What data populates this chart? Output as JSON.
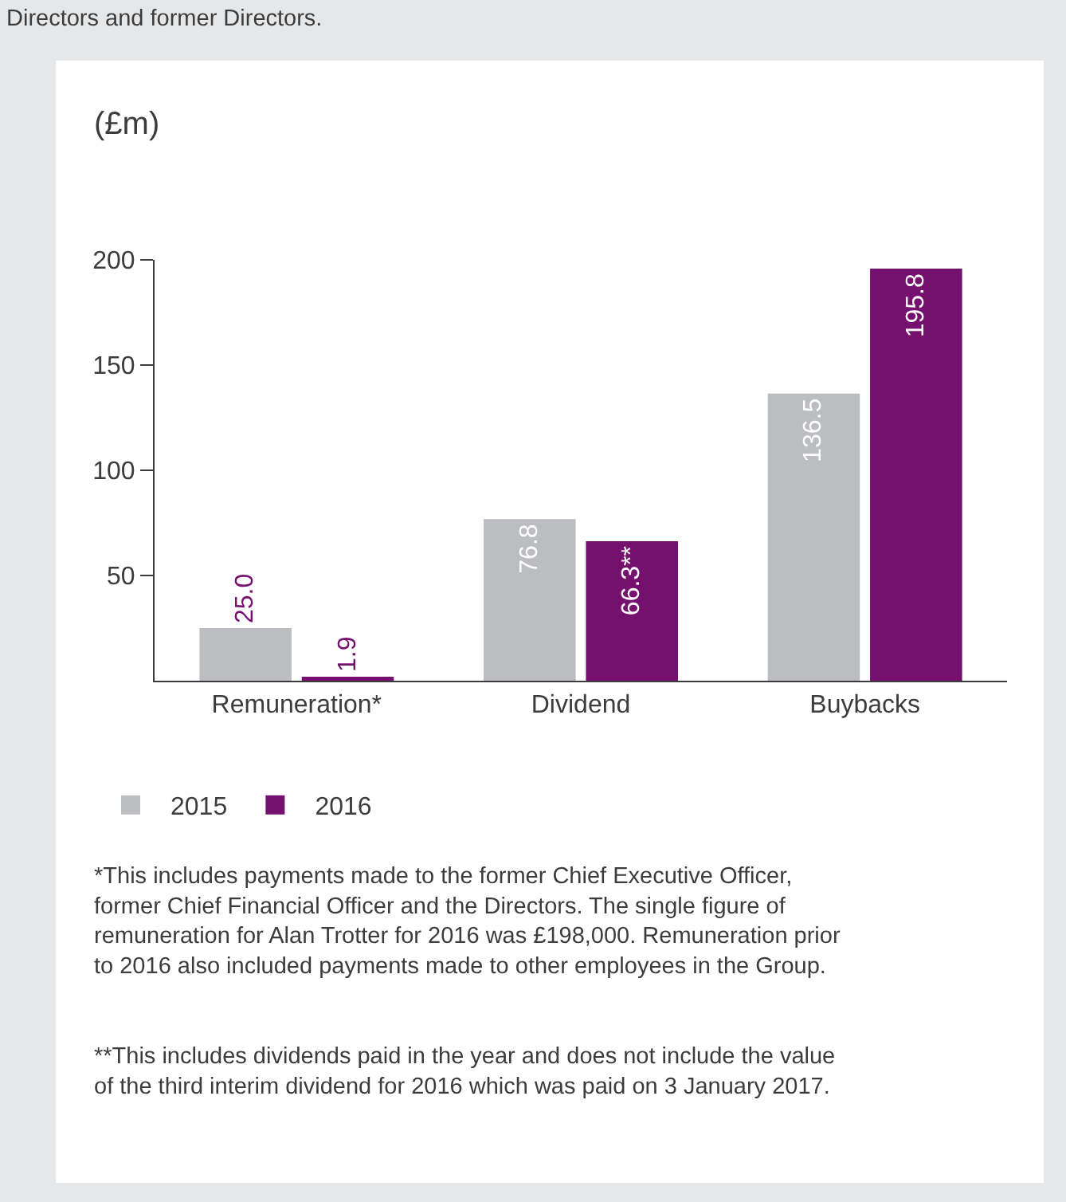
{
  "chart_data": {
    "type": "bar",
    "ylabel": "(£m)",
    "categories": [
      "Remuneration*",
      "Dividend",
      "Buybacks"
    ],
    "series": [
      {
        "name": "2015",
        "color": "#bcbdc0",
        "values": [
          25.0,
          76.8,
          136.5
        ],
        "value_labels": [
          "25.0",
          "76.8",
          "136.5"
        ]
      },
      {
        "name": "2016",
        "color": "#76106e",
        "values": [
          1.9,
          66.3,
          195.8
        ],
        "value_labels": [
          "1.9",
          "66.3**",
          "195.8"
        ]
      }
    ],
    "ylim": [
      0,
      200
    ],
    "yticks": [
      50,
      100,
      150,
      200
    ],
    "grid": false,
    "legend": "bottom left",
    "annotations": [
      "Directors and former Directors.",
      "*This includes payments made to the former Chief Executive Officer, former Chief Financial Officer and the Directors. The single figure of remuneration for Alan Trotter for 2016 was £198,000. Remuneration prior to 2016 also included payments made to other employees in the Group.",
      "**This includes dividends paid in the year and does not include the value of the third interim dividend for 2016 which was paid on 3 January 2017."
    ]
  }
}
